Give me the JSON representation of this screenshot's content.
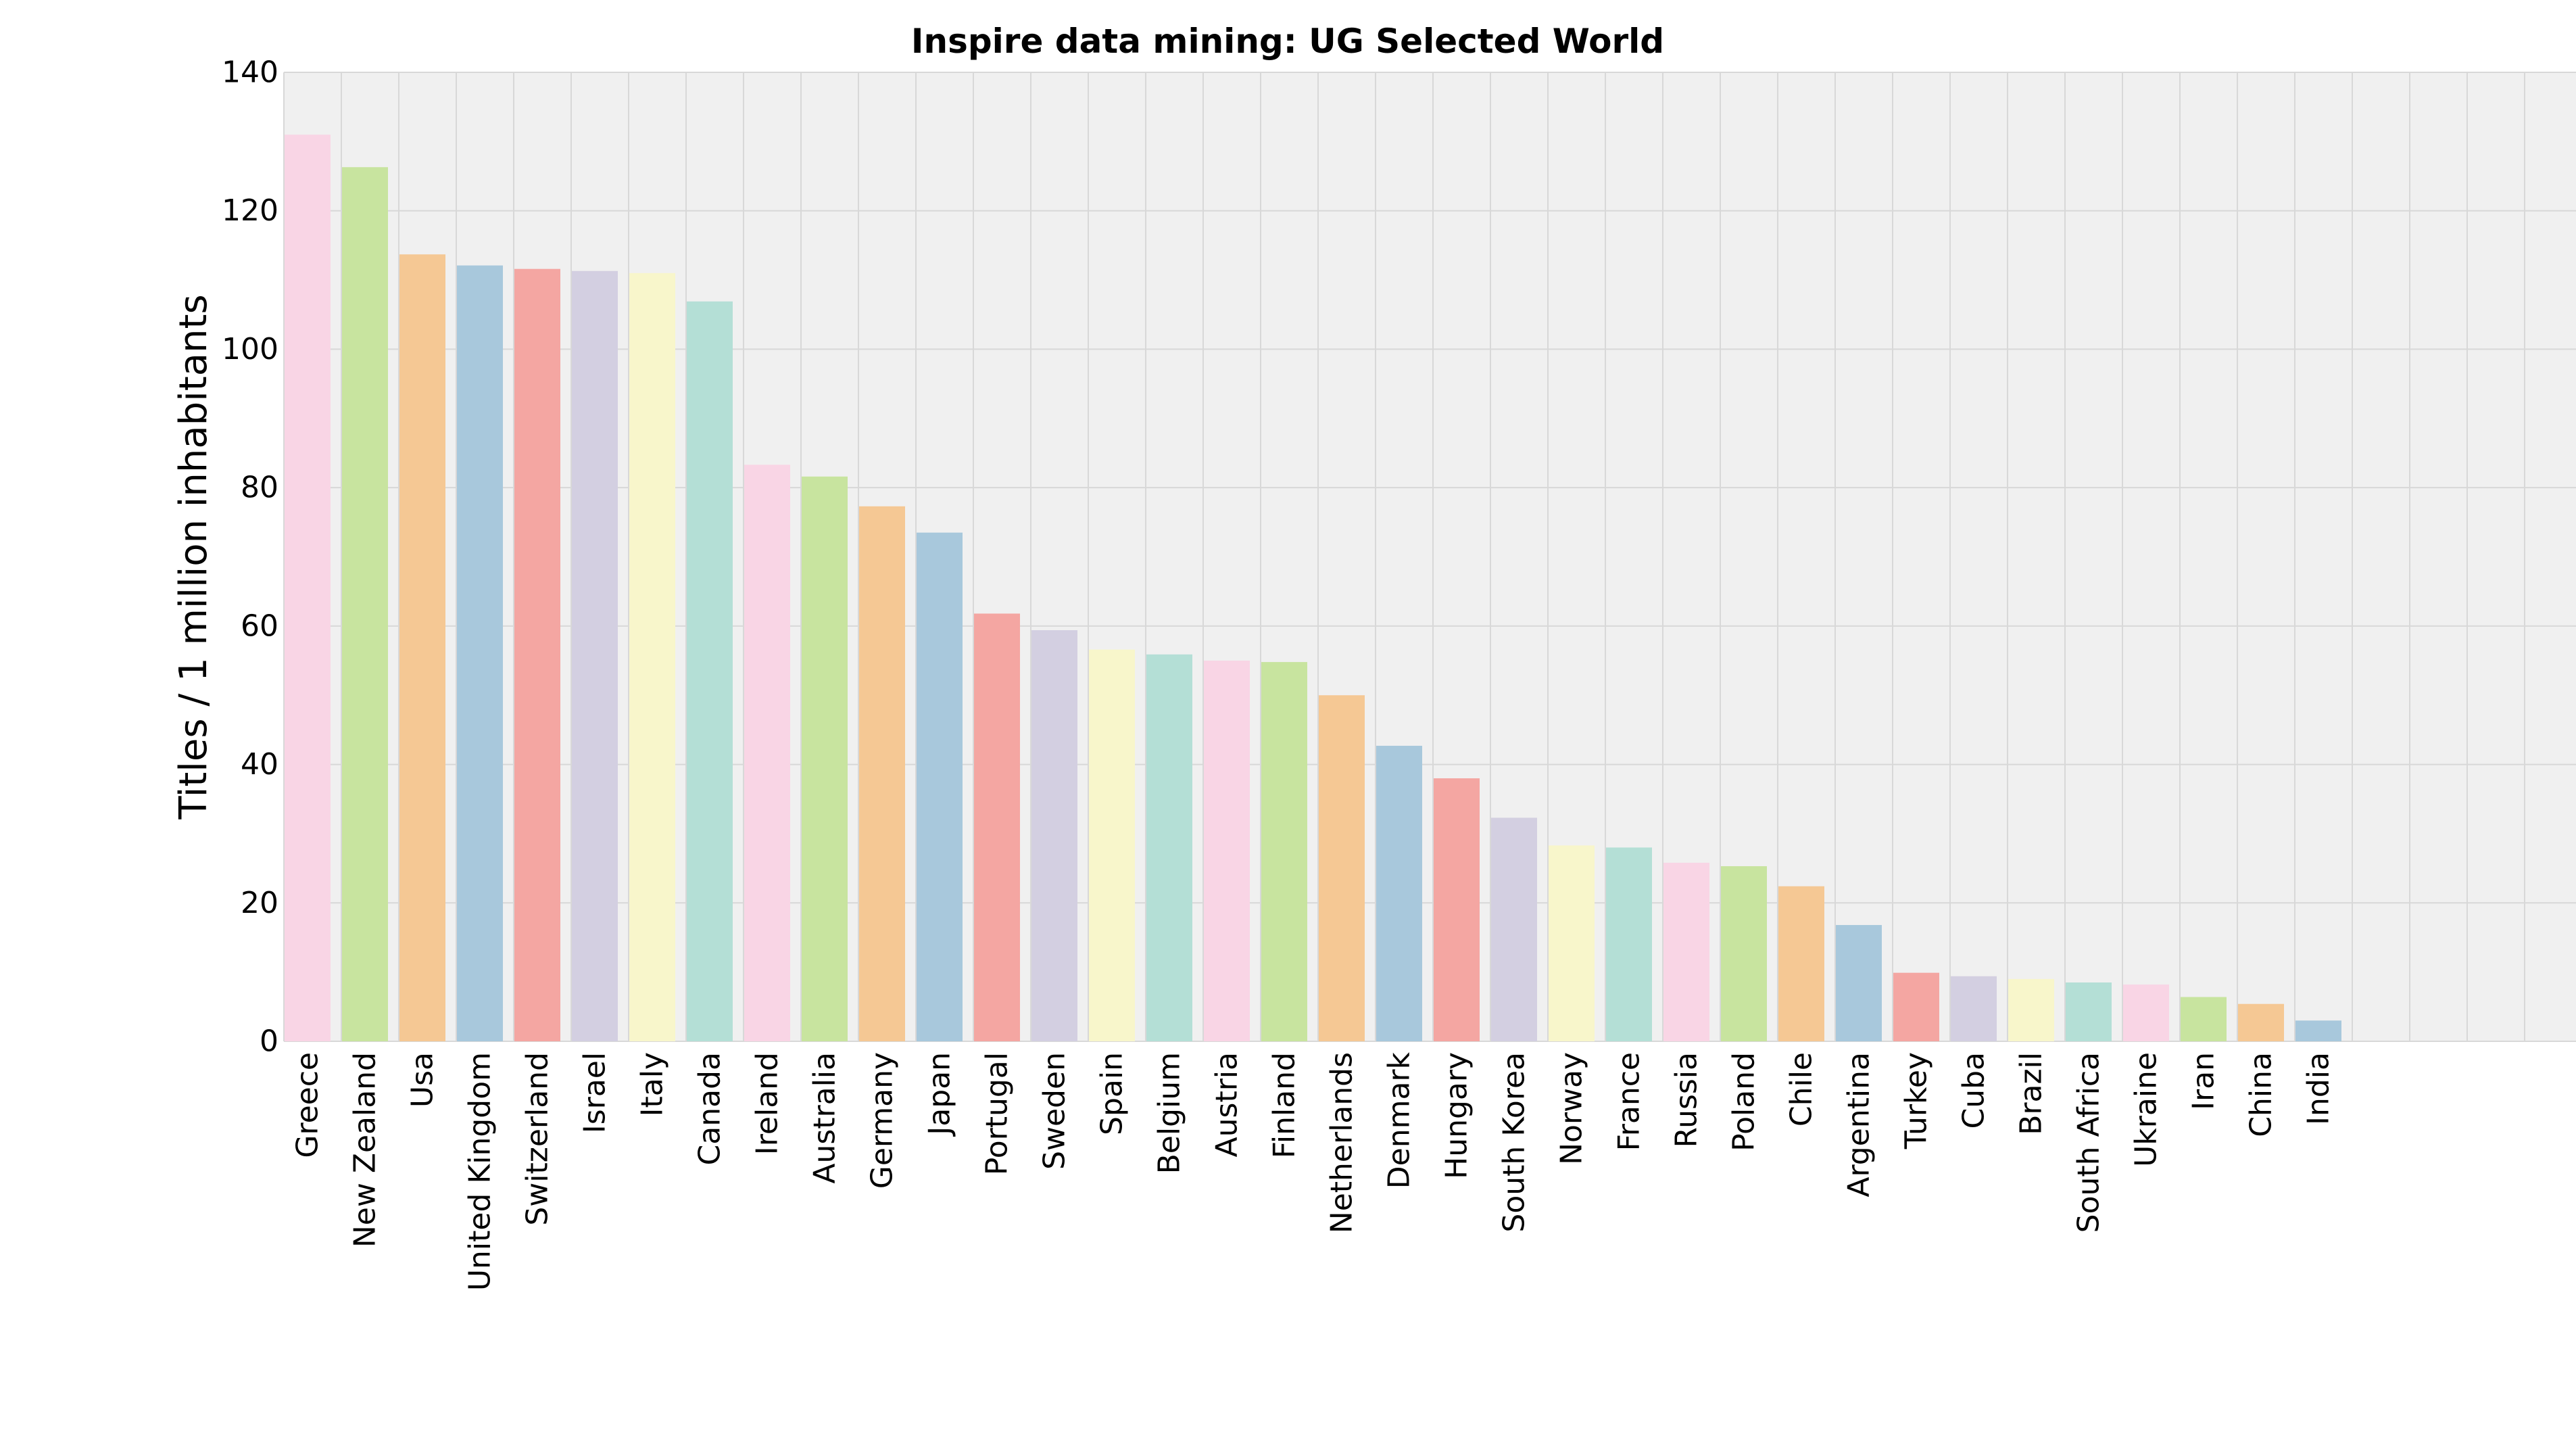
{
  "chart_data": {
    "type": "bar",
    "title": "Inspire data mining: UG Selected World",
    "xlabel": "",
    "ylabel": "Titles / 1 million inhabitants",
    "ylim": [
      0,
      140
    ],
    "yticks": [
      "0",
      "20",
      "40",
      "60",
      "80",
      "100",
      "120",
      "140"
    ],
    "grid": true,
    "categories": [
      "Greece",
      "New Zealand",
      "Usa",
      "United Kingdom",
      "Switzerland",
      "Israel",
      "Italy",
      "Canada",
      "Ireland",
      "Australia",
      "Germany",
      "Japan",
      "Portugal",
      "Sweden",
      "Spain",
      "Belgium",
      "Austria",
      "Finland",
      "Netherlands",
      "Denmark",
      "Hungary",
      "South Korea",
      "Norway",
      "France",
      "Russia",
      "Poland",
      "Chile",
      "Argentina",
      "Turkey",
      "Cuba",
      "Brazil",
      "South Africa",
      "Ukraine",
      "Iran",
      "China",
      "India"
    ],
    "values": [
      131.0,
      126.3,
      113.7,
      112.1,
      111.6,
      111.3,
      111.0,
      106.9,
      83.3,
      81.6,
      77.3,
      73.5,
      61.8,
      59.4,
      56.6,
      55.9,
      55.0,
      54.8,
      50.0,
      42.7,
      38.0,
      32.3,
      28.3,
      28.0,
      25.8,
      25.3,
      22.4,
      16.8,
      9.9,
      9.4,
      9.0,
      8.5,
      8.2,
      6.4,
      5.4,
      3.0
    ],
    "colors": [
      "#f9d5e5",
      "#c8e49f",
      "#f5c894",
      "#a8c8dc",
      "#f4a6a2",
      "#d3cfe1",
      "#f8f6cb",
      "#b4dfd6"
    ]
  }
}
